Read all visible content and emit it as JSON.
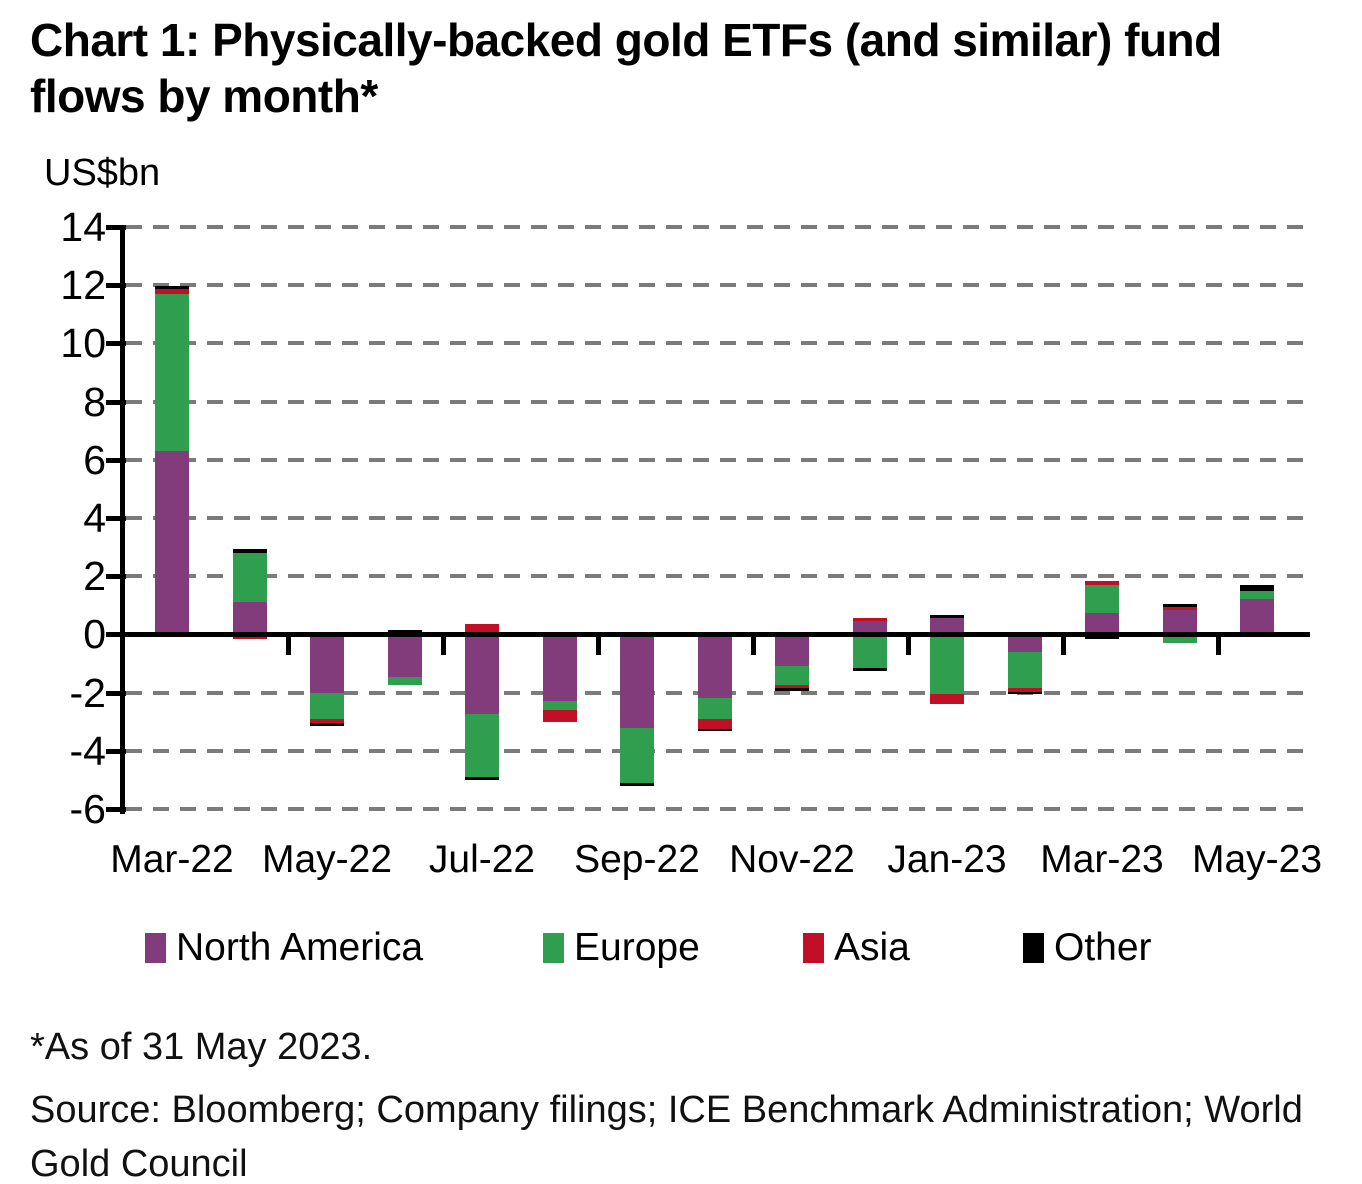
{
  "title": "Chart 1: Physically-backed gold ETFs (and similar) fund flows by month*",
  "y_axis_label": "US$bn",
  "footnote": "*As of 31 May 2023.",
  "source": "Source: Bloomberg; Company filings; ICE Benchmark Administration; World Gold Council",
  "colors": {
    "north_america": "#823c7c",
    "europe": "#2f9e4f",
    "asia": "#c00f26",
    "other": "#000000",
    "gridline": "#7b7b7b"
  },
  "chart_data": {
    "type": "bar",
    "subtype": "stacked",
    "title": "Chart 1: Physically-backed gold ETFs (and similar) fund flows by month*",
    "ylabel": "US$bn",
    "ylim": [
      -6,
      14
    ],
    "ytick_step": 2,
    "yticks": [
      14,
      12,
      10,
      8,
      6,
      4,
      2,
      0,
      -2,
      -4,
      -6
    ],
    "grid": "dashed horizontal gridlines, solid zero line",
    "legend_position": "bottom",
    "categories": [
      "Mar-22",
      "Apr-22",
      "May-22",
      "Jun-22",
      "Jul-22",
      "Aug-22",
      "Sep-22",
      "Oct-22",
      "Nov-22",
      "Dec-22",
      "Jan-23",
      "Feb-23",
      "Mar-23",
      "Apr-23",
      "May-23"
    ],
    "x_tick_labels": [
      "Mar-22",
      "May-22",
      "Jul-22",
      "Sep-22",
      "Nov-22",
      "Jan-23",
      "Mar-23",
      "May-23"
    ],
    "series": [
      {
        "name": "North America",
        "color": "#823c7c",
        "values": [
          6.3,
          1.1,
          -2.0,
          -1.45,
          -2.75,
          -2.3,
          -3.2,
          -2.2,
          -1.1,
          0.45,
          0.55,
          -0.6,
          0.75,
          0.85,
          1.2
        ]
      },
      {
        "name": "Europe",
        "color": "#2f9e4f",
        "values": [
          5.4,
          1.7,
          -0.9,
          -0.3,
          -2.15,
          -0.3,
          -1.9,
          -0.7,
          -0.65,
          -1.15,
          -2.05,
          -1.25,
          0.95,
          -0.3,
          0.3
        ]
      },
      {
        "name": "Asia",
        "color": "#c00f26",
        "values": [
          0.17,
          -0.15,
          -0.15,
          0,
          0.35,
          -0.4,
          0,
          -0.35,
          -0.1,
          0.12,
          -0.35,
          -0.13,
          0.13,
          0.1,
          0
        ]
      },
      {
        "name": "Other",
        "color": "#000000",
        "values": [
          0.1,
          0.13,
          -0.1,
          0.15,
          -0.1,
          0,
          -0.1,
          -0.05,
          -0.08,
          -0.1,
          0.13,
          -0.02,
          -0.15,
          0.1,
          0.2
        ]
      }
    ]
  }
}
